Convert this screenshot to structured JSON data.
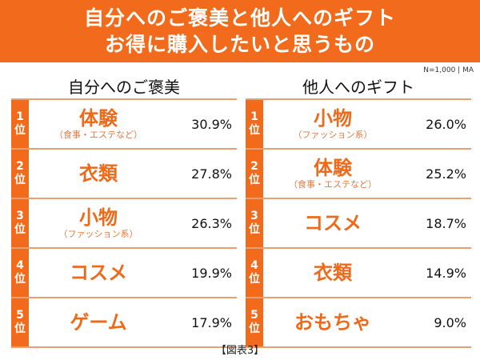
{
  "header": {
    "title_line1": "自分へのご褒美と他人へのギフト",
    "title_line2": "お得に購入したいと思うもの"
  },
  "note": "N=1,000 | MA",
  "caption": "【図表3】",
  "rank_suffix": "位",
  "chart_data": {
    "type": "table",
    "title": "自分へのご褒美と他人へのギフト お得に購入したいと思うもの",
    "tables": [
      {
        "heading": "自分へのご褒美",
        "rows": [
          {
            "rank": "1",
            "item": "体験",
            "sub": "（食事・エステなど）",
            "value": "30.9%"
          },
          {
            "rank": "2",
            "item": "衣類",
            "sub": "",
            "value": "27.8%"
          },
          {
            "rank": "3",
            "item": "小物",
            "sub": "（ファッション系）",
            "value": "26.3%"
          },
          {
            "rank": "4",
            "item": "コスメ",
            "sub": "",
            "value": "19.9%"
          },
          {
            "rank": "5",
            "item": "ゲーム",
            "sub": "",
            "value": "17.9%"
          }
        ]
      },
      {
        "heading": "他人へのギフト",
        "rows": [
          {
            "rank": "1",
            "item": "小物",
            "sub": "（ファッション系）",
            "value": "26.0%"
          },
          {
            "rank": "2",
            "item": "体験",
            "sub": "（食事・エステなど）",
            "value": "25.2%"
          },
          {
            "rank": "3",
            "item": "コスメ",
            "sub": "",
            "value": "18.7%"
          },
          {
            "rank": "4",
            "item": "衣類",
            "sub": "",
            "value": "14.9%"
          },
          {
            "rank": "5",
            "item": "おもちゃ",
            "sub": "",
            "value": "9.0%"
          }
        ]
      }
    ]
  }
}
